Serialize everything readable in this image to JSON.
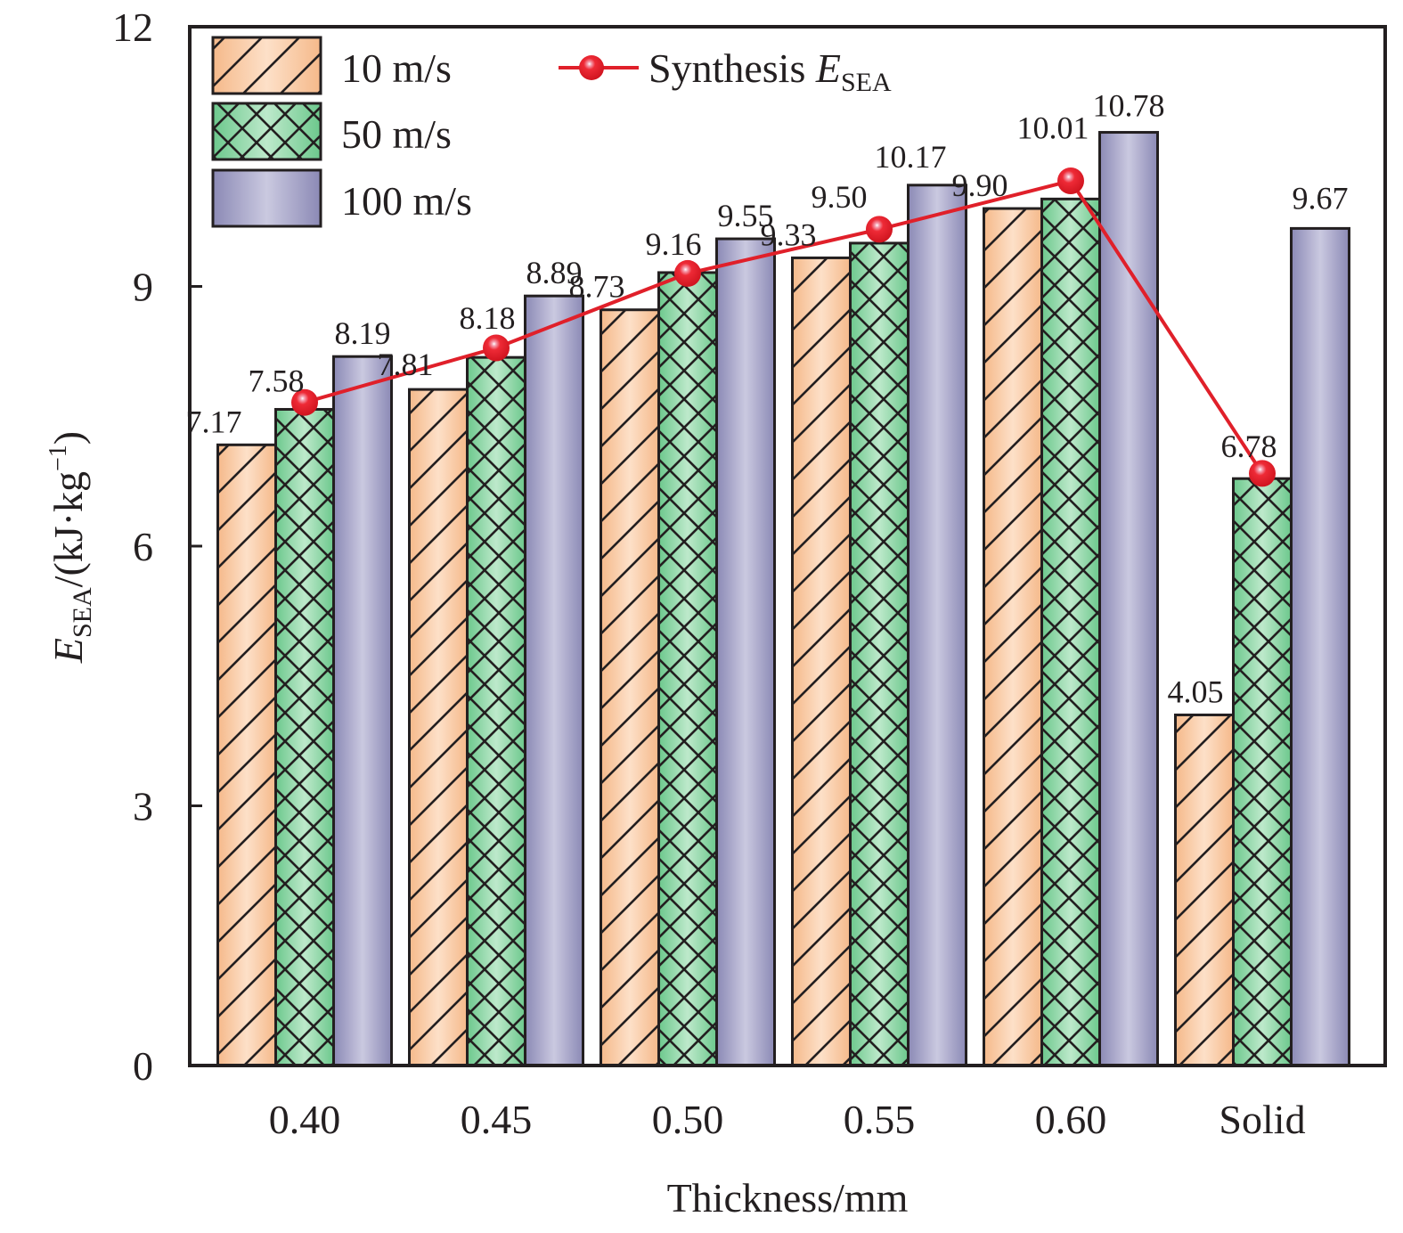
{
  "chart_data": {
    "type": "bar",
    "title": "",
    "xlabel": "Thickness/mm",
    "ylabel": {
      "main": "E",
      "sub": "SEA",
      "unit_prefix": "/(kJ·kg",
      "unit_sup": "−1",
      "unit_suffix": ")"
    },
    "ylim": [
      0,
      12
    ],
    "yticks": [
      0,
      3,
      6,
      9,
      12
    ],
    "grid": false,
    "legend_position": "top-left",
    "categories": [
      "0.40",
      "0.45",
      "0.50",
      "0.55",
      "0.60",
      "Solid"
    ],
    "series": [
      {
        "name": "10 m/s",
        "kind": "bar",
        "pattern": "diagonal-hatch",
        "color_edge": "#F5B98A",
        "color_center": "#FDE0C8",
        "values": [
          7.17,
          7.81,
          8.73,
          9.33,
          9.9,
          4.05
        ]
      },
      {
        "name": "50 m/s",
        "kind": "bar",
        "pattern": "cross-hatch",
        "color_edge": "#6CC88C",
        "color_center": "#BDE9CB",
        "values": [
          7.58,
          8.18,
          9.16,
          9.5,
          10.01,
          6.78
        ]
      },
      {
        "name": "100 m/s",
        "kind": "bar",
        "pattern": "none",
        "color_edge": "#8B89B5",
        "color_center": "#CAC9E0",
        "values": [
          8.19,
          8.89,
          9.55,
          10.17,
          10.78,
          9.67
        ]
      },
      {
        "name": "Synthesis",
        "name_math": "E",
        "name_sub": "SEA",
        "kind": "line",
        "color": "#E0202A",
        "values": [
          7.66,
          8.29,
          9.15,
          9.66,
          10.22,
          6.84
        ]
      }
    ]
  }
}
